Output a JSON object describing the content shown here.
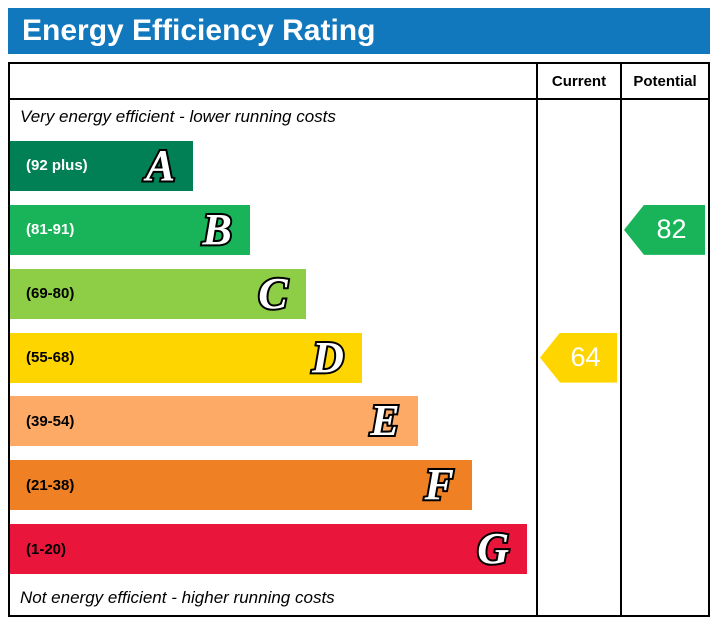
{
  "title": "Energy Efficiency Rating",
  "columns": {
    "current": "Current",
    "potential": "Potential"
  },
  "captions": {
    "top": "Very energy efficient - lower running costs",
    "bottom": "Not energy efficient - higher running costs"
  },
  "bands": [
    {
      "letter": "A",
      "range": "(92 plus)",
      "color": "#008054",
      "text_color": "#ffffff",
      "width_pct": 34.8
    },
    {
      "letter": "B",
      "range": "(81-91)",
      "color": "#19b459",
      "text_color": "#ffffff",
      "width_pct": 45.6
    },
    {
      "letter": "C",
      "range": "(69-80)",
      "color": "#8dce46",
      "text_color": "#000000",
      "width_pct": 56.2
    },
    {
      "letter": "D",
      "range": "(55-68)",
      "color": "#ffd500",
      "text_color": "#000000",
      "width_pct": 66.9
    },
    {
      "letter": "E",
      "range": "(39-54)",
      "color": "#fcaa65",
      "text_color": "#000000",
      "width_pct": 77.5
    },
    {
      "letter": "F",
      "range": "(21-38)",
      "color": "#ef8023",
      "text_color": "#000000",
      "width_pct": 87.8
    },
    {
      "letter": "G",
      "range": "(1-20)",
      "color": "#e9153b",
      "text_color": "#000000",
      "width_pct": 98.3
    }
  ],
  "ratings": {
    "current": {
      "value": "64",
      "color": "#ffd500",
      "band_index": 3
    },
    "potential": {
      "value": "82",
      "color": "#19b459",
      "band_index": 1
    }
  },
  "theme": {
    "title_bg": "#1278be",
    "title_fg": "#ffffff",
    "border": "#000000"
  },
  "chart_data": {
    "type": "bar",
    "title": "Energy Efficiency Rating",
    "categories": [
      "A",
      "B",
      "C",
      "D",
      "E",
      "F",
      "G"
    ],
    "band_ranges": [
      "92 plus",
      "81-91",
      "69-80",
      "55-68",
      "39-54",
      "21-38",
      "1-20"
    ],
    "band_colors": [
      "#008054",
      "#19b459",
      "#8dce46",
      "#ffd500",
      "#fcaa65",
      "#ef8023",
      "#e9153b"
    ],
    "bar_widths_pct": [
      34.8,
      45.6,
      56.2,
      66.9,
      77.5,
      87.8,
      98.3
    ],
    "current_rating": 64,
    "current_band": "D",
    "potential_rating": 82,
    "potential_band": "B",
    "legend_position": "none",
    "grid": false,
    "annotations": [
      "Very energy efficient - lower running costs",
      "Not energy efficient - higher running costs"
    ]
  }
}
